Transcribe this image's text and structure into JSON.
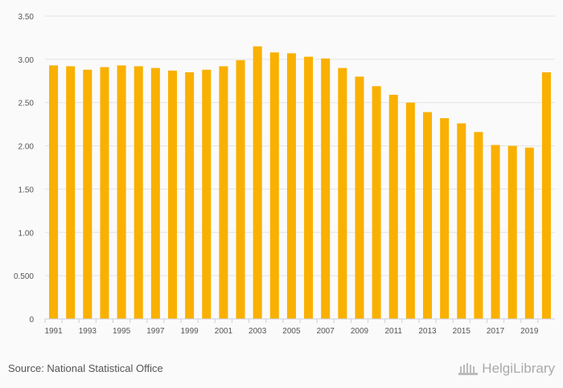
{
  "chart_data": {
    "type": "bar",
    "title": "",
    "xlabel": "",
    "ylabel": "",
    "ylim": [
      0,
      3.5
    ],
    "yticks": [
      "0",
      "0.500",
      "1.00",
      "1.50",
      "2.00",
      "2.50",
      "3.00",
      "3.50"
    ],
    "ytick_values": [
      0,
      0.5,
      1,
      1.5,
      2,
      2.5,
      3,
      3.5
    ],
    "grid": true,
    "categories": [
      "1991",
      "1992",
      "1993",
      "1994",
      "1995",
      "1996",
      "1997",
      "1998",
      "1999",
      "2000",
      "2001",
      "2002",
      "2003",
      "2004",
      "2005",
      "2006",
      "2007",
      "2008",
      "2009",
      "2010",
      "2011",
      "2012",
      "2013",
      "2014",
      "2015",
      "2016",
      "2017",
      "2018",
      "2019",
      "2020"
    ],
    "values": [
      2.93,
      2.92,
      2.88,
      2.91,
      2.93,
      2.92,
      2.9,
      2.87,
      2.85,
      2.88,
      2.92,
      2.99,
      3.15,
      3.08,
      3.07,
      3.03,
      3.01,
      2.9,
      2.8,
      2.69,
      2.59,
      2.5,
      2.39,
      2.32,
      2.26,
      2.16,
      2.01,
      2.0,
      1.98,
      2.85
    ],
    "xtick_labels": [
      "1991",
      "1993",
      "1995",
      "1997",
      "1999",
      "2001",
      "2003",
      "2005",
      "2007",
      "2009",
      "2011",
      "2013",
      "2015",
      "2017",
      "2019"
    ],
    "colors": {
      "bar": "#f9b000",
      "grid": "#e3e3e3",
      "axis": "#c9cfe0",
      "tick_text": "#555555"
    }
  },
  "footer": {
    "source": "Source: National Statistical Office",
    "logo": "HelgiLibrary"
  }
}
